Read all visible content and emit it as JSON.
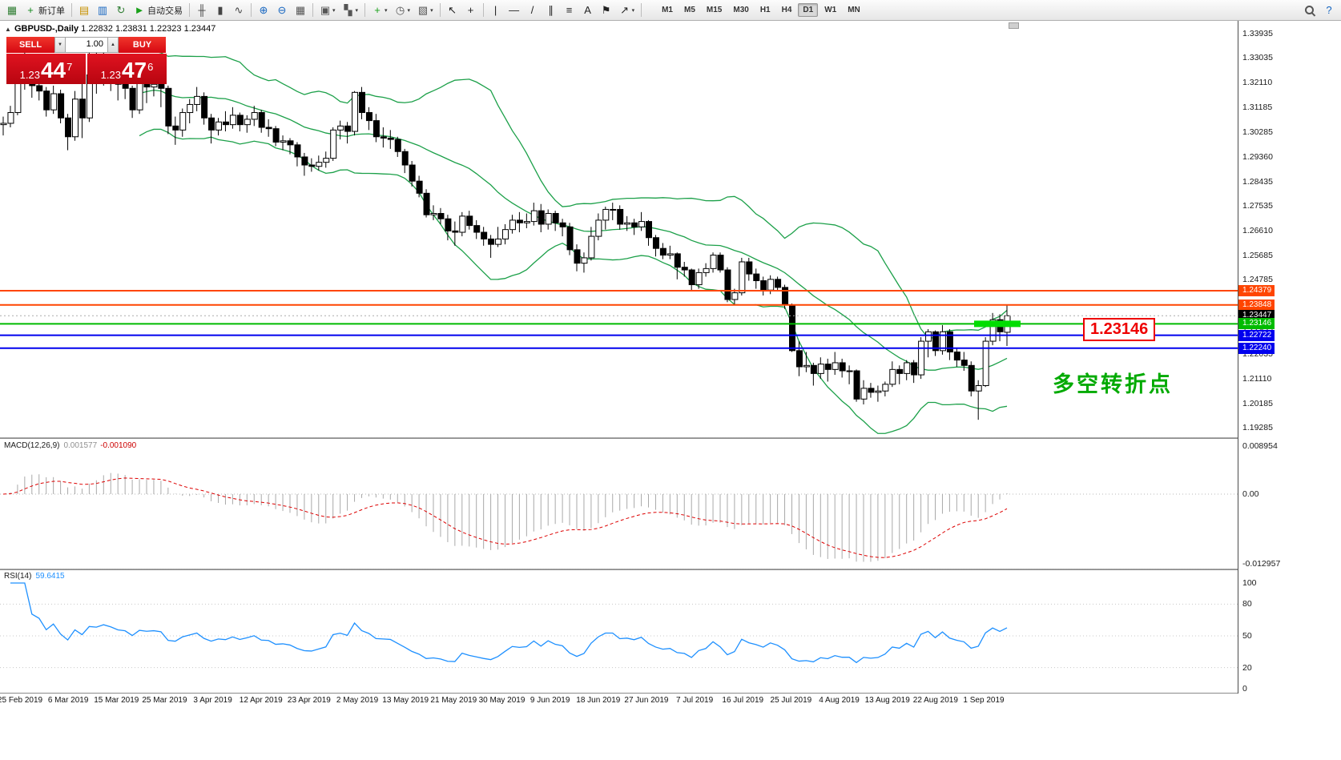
{
  "toolbar": {
    "timeframes": [
      "M1",
      "M5",
      "M15",
      "M30",
      "H1",
      "H4",
      "D1",
      "W1",
      "MN"
    ],
    "active_timeframe": "D1",
    "items": [
      {
        "name": "app-logo-icon",
        "glyph": "▦",
        "color": "#2e7d32"
      },
      {
        "name": "new-order-button",
        "glyph": "+",
        "color": "#12891c",
        "label": "新订单"
      },
      {
        "kind": "divider"
      },
      {
        "name": "profile-icon",
        "glyph": "▤",
        "color": "#c79100"
      },
      {
        "name": "market-watch-icon",
        "glyph": "▥",
        "color": "#1565c0"
      },
      {
        "name": "refresh-icon",
        "glyph": "↻",
        "color": "#2e7d32"
      },
      {
        "name": "auto-trading-button",
        "glyph": "►",
        "color": "#18a018",
        "label": "自动交易"
      },
      {
        "kind": "divider"
      },
      {
        "name": "bar-chart-icon",
        "glyph": "╫",
        "color": "#444444"
      },
      {
        "name": "candlestick-icon",
        "glyph": "▮",
        "color": "#444444"
      },
      {
        "name": "line-chart-icon",
        "glyph": "∿",
        "color": "#444444"
      },
      {
        "kind": "divider"
      },
      {
        "name": "zoom-in-icon",
        "glyph": "⊕",
        "color": "#1565c0"
      },
      {
        "name": "zoom-out-icon",
        "glyph": "⊖",
        "color": "#1565c0"
      },
      {
        "name": "tile-windows-icon",
        "glyph": "▦",
        "color": "#555555"
      },
      {
        "kind": "divider"
      },
      {
        "name": "new-chart-icon",
        "glyph": "▣",
        "color": "#555555",
        "caret": true
      },
      {
        "name": "profiles-icon",
        "glyph": "▚",
        "color": "#555555",
        "caret": true
      },
      {
        "kind": "divider"
      },
      {
        "name": "indicators-icon",
        "glyph": "+",
        "color": "#18a018",
        "caret": true
      },
      {
        "name": "periods-icon",
        "glyph": "◷",
        "color": "#555555",
        "caret": true
      },
      {
        "name": "templates-icon",
        "glyph": "▧",
        "color": "#555555",
        "caret": true
      },
      {
        "kind": "divider"
      },
      {
        "name": "cursor-icon",
        "glyph": "↖",
        "color": "#222222"
      },
      {
        "name": "crosshair-icon",
        "glyph": "+",
        "color": "#222222"
      },
      {
        "kind": "divider"
      },
      {
        "name": "vertical-line-icon",
        "glyph": "|",
        "color": "#222222"
      },
      {
        "name": "horizontal-line-icon",
        "glyph": "—",
        "color": "#222222"
      },
      {
        "name": "trendline-icon",
        "glyph": "/",
        "color": "#222222"
      },
      {
        "name": "channel-icon",
        "glyph": "∥",
        "color": "#222222"
      },
      {
        "name": "fibonacci-icon",
        "glyph": "≡",
        "color": "#222222"
      },
      {
        "name": "text-icon",
        "glyph": "A",
        "color": "#222222"
      },
      {
        "name": "label-icon",
        "glyph": "⚑",
        "color": "#222222"
      },
      {
        "name": "arrows-icon",
        "glyph": "↗",
        "color": "#222222",
        "caret": true
      },
      {
        "kind": "divider"
      },
      {
        "kind": "tf-group"
      },
      {
        "kind": "spacer"
      },
      {
        "name": "search-button",
        "kind": "mag"
      },
      {
        "name": "help-button",
        "glyph": "?",
        "color": "#1565c0"
      }
    ]
  },
  "chart": {
    "collapse_glyph": "▲",
    "symbol_period": "GBPUSD-,Daily",
    "ohlc_text": "1.22832 1.23831 1.22323 1.23447"
  },
  "trade_panel": {
    "sell_label": "SELL",
    "buy_label": "BUY",
    "volume": "1.00",
    "vol_down_glyph": "▼",
    "vol_up_glyph": "▲",
    "sell_price": {
      "prefix": "1.23",
      "big": "44",
      "sup": "7"
    },
    "buy_price": {
      "prefix": "1.23",
      "big": "47",
      "sup": "6"
    }
  },
  "annotations": {
    "level_label": "1.23146",
    "note": "多空转折点",
    "note_color": "#00aa00"
  },
  "macd": {
    "name": "MACD(12,26,9)",
    "value_main": "0.001577",
    "value_signal": "-0.001090",
    "scale": [
      {
        "label": "0.008954",
        "v": 0.008954
      },
      {
        "label": "0.00",
        "v": 0
      },
      {
        "label": "-0.012957",
        "v": -0.012957
      }
    ]
  },
  "rsi": {
    "name": "RSI(14)",
    "value": "59.6415",
    "levels": [
      80,
      50,
      20
    ],
    "scale": [
      {
        "label": "100",
        "v": 100
      },
      {
        "label": "80",
        "v": 80
      },
      {
        "label": "50",
        "v": 50
      },
      {
        "label": "20",
        "v": 20
      },
      {
        "label": "0",
        "v": 0
      }
    ]
  },
  "chart_data": {
    "type": "candlestick",
    "symbol": "GBPUSD-",
    "timeframe": "Daily",
    "price_min": 1.1893,
    "price_max": 1.3435,
    "bollinger": {
      "period": 20,
      "deviation": 2,
      "color": "#1ca049"
    },
    "y_ticks": [
      "1.33935",
      "1.33035",
      "1.32110",
      "1.31185",
      "1.30285",
      "1.29360",
      "1.28435",
      "1.27535",
      "1.26610",
      "1.25685",
      "1.24785",
      "1.23860",
      "1.22935",
      "1.22035",
      "1.21110",
      "1.20185",
      "1.19285"
    ],
    "x_labels": [
      "25 Feb 2019",
      "6 Mar 2019",
      "15 Mar 2019",
      "25 Mar 2019",
      "3 Apr 2019",
      "12 Apr 2019",
      "23 Apr 2019",
      "2 May 2019",
      "13 May 2019",
      "21 May 2019",
      "30 May 2019",
      "9 Jun 2019",
      "18 Jun 2019",
      "27 Jun 2019",
      "7 Jul 2019",
      "16 Jul 2019",
      "25 Jul 2019",
      "4 Aug 2019",
      "13 Aug 2019",
      "22 Aug 2019",
      "1 Sep 2019"
    ],
    "levels": [
      {
        "price": 1.24379,
        "color": "#ff4500",
        "width": 2
      },
      {
        "price": 1.23848,
        "color": "#ff4500",
        "width": 2
      },
      {
        "price": 1.23146,
        "color": "#00bb00",
        "width": 2
      },
      {
        "price": 1.22722,
        "color": "#0000ee",
        "width": 2
      },
      {
        "price": 1.2224,
        "color": "#0000ee",
        "width": 2
      }
    ],
    "current_price": 1.23447,
    "tags": [
      {
        "text": "1.24379",
        "price": 1.24379,
        "color": "#ff4500"
      },
      {
        "text": "1.23848",
        "price": 1.23848,
        "color": "#ff4500"
      },
      {
        "text": "1.23447",
        "price": 1.23447,
        "color": "#000000"
      },
      {
        "text": "1.23146",
        "price": 1.23146,
        "color": "#00bb00"
      },
      {
        "text": "1.22722",
        "price": 1.22722,
        "color": "#0000ee"
      },
      {
        "text": "1.22240",
        "price": 1.2224,
        "color": "#0000ee"
      }
    ],
    "highlight": {
      "price": 1.23146,
      "x": 1216,
      "w": 58,
      "h": 8,
      "color": "#00dd00"
    },
    "candles": [
      [
        1.3055,
        1.3085,
        1.3015,
        1.306
      ],
      [
        1.306,
        1.3125,
        1.3045,
        1.31
      ],
      [
        1.31,
        1.327,
        1.309,
        1.325
      ],
      [
        1.325,
        1.333,
        1.3185,
        1.33
      ],
      [
        1.33,
        1.3315,
        1.3155,
        1.32
      ],
      [
        1.32,
        1.3225,
        1.3145,
        1.318
      ],
      [
        1.318,
        1.3195,
        1.3085,
        1.311
      ],
      [
        1.311,
        1.32,
        1.3095,
        1.317
      ],
      [
        1.317,
        1.3185,
        1.306,
        1.308
      ],
      [
        1.308,
        1.3095,
        1.296,
        1.301
      ],
      [
        1.301,
        1.318,
        1.2995,
        1.315
      ],
      [
        1.315,
        1.329,
        1.3005,
        1.308
      ],
      [
        1.308,
        1.338,
        1.3065,
        1.324
      ],
      [
        1.324,
        1.333,
        1.317,
        1.323
      ],
      [
        1.323,
        1.3345,
        1.32,
        1.329
      ],
      [
        1.329,
        1.331,
        1.318,
        1.3255
      ],
      [
        1.3255,
        1.327,
        1.3145,
        1.3205
      ],
      [
        1.3205,
        1.3255,
        1.315,
        1.319
      ],
      [
        1.319,
        1.32,
        1.308,
        1.311
      ],
      [
        1.311,
        1.3225,
        1.3095,
        1.321
      ],
      [
        1.321,
        1.323,
        1.3135,
        1.3195
      ],
      [
        1.3195,
        1.3245,
        1.316,
        1.3205
      ],
      [
        1.3205,
        1.322,
        1.312,
        1.319
      ],
      [
        1.319,
        1.32,
        1.302,
        1.305
      ],
      [
        1.305,
        1.3085,
        1.298,
        1.3035
      ],
      [
        1.3035,
        1.3115,
        1.301,
        1.31
      ],
      [
        1.31,
        1.315,
        1.306,
        1.313
      ],
      [
        1.313,
        1.3195,
        1.3105,
        1.316
      ],
      [
        1.316,
        1.3175,
        1.3055,
        1.308
      ],
      [
        1.308,
        1.3095,
        1.2985,
        1.3035
      ],
      [
        1.3035,
        1.308,
        1.3015,
        1.3065
      ],
      [
        1.3065,
        1.3105,
        1.303,
        1.3055
      ],
      [
        1.3055,
        1.312,
        1.304,
        1.309
      ],
      [
        1.309,
        1.31,
        1.303,
        1.3055
      ],
      [
        1.3055,
        1.309,
        1.3025,
        1.3075
      ],
      [
        1.3075,
        1.3125,
        1.305,
        1.31
      ],
      [
        1.31,
        1.311,
        1.3025,
        1.3045
      ],
      [
        1.3045,
        1.3075,
        1.301,
        1.304
      ],
      [
        1.304,
        1.305,
        1.2975,
        1.299
      ],
      [
        1.299,
        1.3015,
        1.296,
        1.2995
      ],
      [
        1.2995,
        1.3005,
        1.2945,
        1.298
      ],
      [
        1.298,
        1.299,
        1.29,
        1.2935
      ],
      [
        1.2935,
        1.295,
        1.2865,
        1.2905
      ],
      [
        1.2905,
        1.293,
        1.288,
        1.29
      ],
      [
        1.29,
        1.294,
        1.2885,
        1.2915
      ],
      [
        1.2915,
        1.2955,
        1.2895,
        1.293
      ],
      [
        1.293,
        1.3045,
        1.292,
        1.3035
      ],
      [
        1.3035,
        1.307,
        1.3,
        1.305
      ],
      [
        1.305,
        1.3065,
        1.2985,
        1.303
      ],
      [
        1.303,
        1.318,
        1.3015,
        1.3175
      ],
      [
        1.3175,
        1.3195,
        1.3075,
        1.31
      ],
      [
        1.31,
        1.312,
        1.3035,
        1.307
      ],
      [
        1.307,
        1.3095,
        1.299,
        1.301
      ],
      [
        1.301,
        1.3045,
        1.297,
        1.3005
      ],
      [
        1.3005,
        1.3035,
        1.2965,
        1.3
      ],
      [
        1.3,
        1.301,
        1.2935,
        1.2955
      ],
      [
        1.2955,
        1.2965,
        1.2875,
        1.2905
      ],
      [
        1.2905,
        1.292,
        1.2825,
        1.2845
      ],
      [
        1.2845,
        1.2865,
        1.2785,
        1.28
      ],
      [
        1.28,
        1.2815,
        1.271,
        1.272
      ],
      [
        1.272,
        1.2755,
        1.27,
        1.2725
      ],
      [
        1.2725,
        1.2745,
        1.2685,
        1.2705
      ],
      [
        1.2705,
        1.272,
        1.2625,
        1.266
      ],
      [
        1.266,
        1.2695,
        1.2605,
        1.2655
      ],
      [
        1.2655,
        1.273,
        1.264,
        1.2715
      ],
      [
        1.2715,
        1.2735,
        1.2665,
        1.268
      ],
      [
        1.268,
        1.27,
        1.263,
        1.2655
      ],
      [
        1.2655,
        1.2675,
        1.2605,
        1.263
      ],
      [
        1.263,
        1.2645,
        1.256,
        1.261
      ],
      [
        1.261,
        1.2675,
        1.26,
        1.263
      ],
      [
        1.263,
        1.2685,
        1.261,
        1.2665
      ],
      [
        1.2665,
        1.272,
        1.265,
        1.27
      ],
      [
        1.27,
        1.273,
        1.2655,
        1.269
      ],
      [
        1.269,
        1.2725,
        1.267,
        1.2695
      ],
      [
        1.2695,
        1.2765,
        1.268,
        1.2735
      ],
      [
        1.2735,
        1.276,
        1.2655,
        1.2685
      ],
      [
        1.2685,
        1.274,
        1.2665,
        1.2725
      ],
      [
        1.2725,
        1.2735,
        1.266,
        1.269
      ],
      [
        1.269,
        1.2705,
        1.264,
        1.2675
      ],
      [
        1.2675,
        1.269,
        1.257,
        1.259
      ],
      [
        1.259,
        1.261,
        1.251,
        1.254
      ],
      [
        1.254,
        1.258,
        1.2505,
        1.256
      ],
      [
        1.256,
        1.2675,
        1.255,
        1.264
      ],
      [
        1.264,
        1.2725,
        1.2625,
        1.27
      ],
      [
        1.27,
        1.275,
        1.2665,
        1.274
      ],
      [
        1.274,
        1.2765,
        1.27,
        1.274
      ],
      [
        1.274,
        1.2755,
        1.2665,
        1.2685
      ],
      [
        1.2685,
        1.2715,
        1.266,
        1.269
      ],
      [
        1.269,
        1.2705,
        1.2645,
        1.2675
      ],
      [
        1.2675,
        1.273,
        1.266,
        1.2695
      ],
      [
        1.2695,
        1.27,
        1.2605,
        1.2635
      ],
      [
        1.2635,
        1.2645,
        1.2565,
        1.2595
      ],
      [
        1.2595,
        1.2615,
        1.2555,
        1.257
      ],
      [
        1.257,
        1.2605,
        1.2555,
        1.2575
      ],
      [
        1.2575,
        1.258,
        1.248,
        1.2525
      ],
      [
        1.2525,
        1.2545,
        1.249,
        1.2515
      ],
      [
        1.2515,
        1.252,
        1.244,
        1.246
      ],
      [
        1.246,
        1.252,
        1.2445,
        1.2505
      ],
      [
        1.2505,
        1.254,
        1.249,
        1.252
      ],
      [
        1.252,
        1.258,
        1.2505,
        1.257
      ],
      [
        1.257,
        1.258,
        1.2505,
        1.2515
      ],
      [
        1.2515,
        1.2525,
        1.2395,
        1.2405
      ],
      [
        1.2405,
        1.2445,
        1.2385,
        1.243
      ],
      [
        1.243,
        1.256,
        1.242,
        1.2545
      ],
      [
        1.2545,
        1.256,
        1.2475,
        1.25
      ],
      [
        1.25,
        1.252,
        1.2445,
        1.2475
      ],
      [
        1.2475,
        1.249,
        1.242,
        1.244
      ],
      [
        1.244,
        1.2495,
        1.2425,
        1.248
      ],
      [
        1.248,
        1.249,
        1.2435,
        1.245
      ],
      [
        1.245,
        1.246,
        1.237,
        1.2385
      ],
      [
        1.2385,
        1.239,
        1.221,
        1.2215
      ],
      [
        1.2215,
        1.225,
        1.212,
        1.2155
      ],
      [
        1.2155,
        1.221,
        1.2135,
        1.216
      ],
      [
        1.216,
        1.217,
        1.2085,
        1.213
      ],
      [
        1.213,
        1.219,
        1.211,
        1.2165
      ],
      [
        1.2165,
        1.2185,
        1.21,
        1.2145
      ],
      [
        1.2145,
        1.221,
        1.2125,
        1.217
      ],
      [
        1.217,
        1.2185,
        1.2115,
        1.214
      ],
      [
        1.214,
        1.216,
        1.209,
        1.214
      ],
      [
        1.214,
        1.2145,
        1.2025,
        1.2035
      ],
      [
        1.2035,
        1.2105,
        1.2015,
        1.2075
      ],
      [
        1.2075,
        1.2095,
        1.204,
        1.206
      ],
      [
        1.206,
        1.2085,
        1.2025,
        1.2065
      ],
      [
        1.2065,
        1.21,
        1.2045,
        1.209
      ],
      [
        1.209,
        1.2175,
        1.208,
        1.2145
      ],
      [
        1.2145,
        1.216,
        1.209,
        1.213
      ],
      [
        1.213,
        1.218,
        1.2105,
        1.217
      ],
      [
        1.217,
        1.218,
        1.2095,
        1.2125
      ],
      [
        1.2125,
        1.2265,
        1.211,
        1.225
      ],
      [
        1.225,
        1.2295,
        1.219,
        1.2285
      ],
      [
        1.2285,
        1.229,
        1.2195,
        1.2215
      ],
      [
        1.2215,
        1.231,
        1.22,
        1.2285
      ],
      [
        1.2285,
        1.2295,
        1.218,
        1.221
      ],
      [
        1.221,
        1.2225,
        1.2155,
        1.218
      ],
      [
        1.218,
        1.221,
        1.214,
        1.216
      ],
      [
        1.216,
        1.2175,
        1.2045,
        1.2065
      ],
      [
        1.2065,
        1.2105,
        1.1958,
        1.2085
      ],
      [
        1.2085,
        1.2265,
        1.208,
        1.225
      ],
      [
        1.225,
        1.2355,
        1.2235,
        1.233
      ],
      [
        1.233,
        1.235,
        1.225,
        1.2285
      ],
      [
        1.22832,
        1.23831,
        1.22323,
        1.23447
      ]
    ]
  }
}
